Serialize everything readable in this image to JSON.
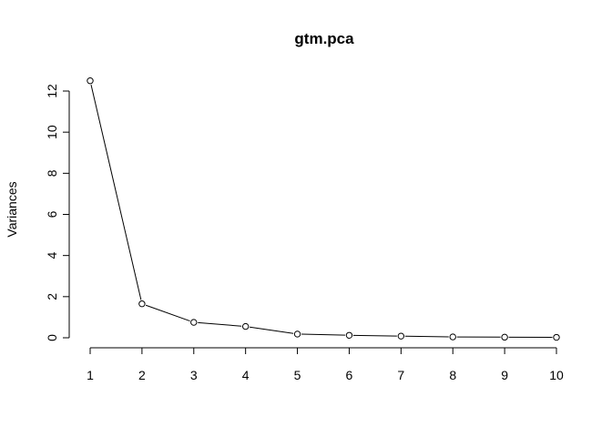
{
  "chart_data": {
    "type": "line",
    "title": "gtm.pca",
    "xlabel": "",
    "ylabel": "Variances",
    "x": [
      1,
      2,
      3,
      4,
      5,
      6,
      7,
      8,
      9,
      10
    ],
    "series": [
      {
        "values": [
          12.5,
          1.65,
          0.75,
          0.55,
          0.18,
          0.12,
          0.08,
          0.04,
          0.03,
          0.02
        ]
      }
    ],
    "xlim": [
      1,
      10
    ],
    "ylim": [
      0,
      12
    ],
    "xticks": [
      "1",
      "2",
      "3",
      "4",
      "5",
      "6",
      "7",
      "8",
      "9",
      "10"
    ],
    "yticks": [
      "0",
      "2",
      "4",
      "6",
      "8",
      "10",
      "12"
    ],
    "grid": false,
    "marker": "open-circle",
    "line_color": "#000000"
  }
}
